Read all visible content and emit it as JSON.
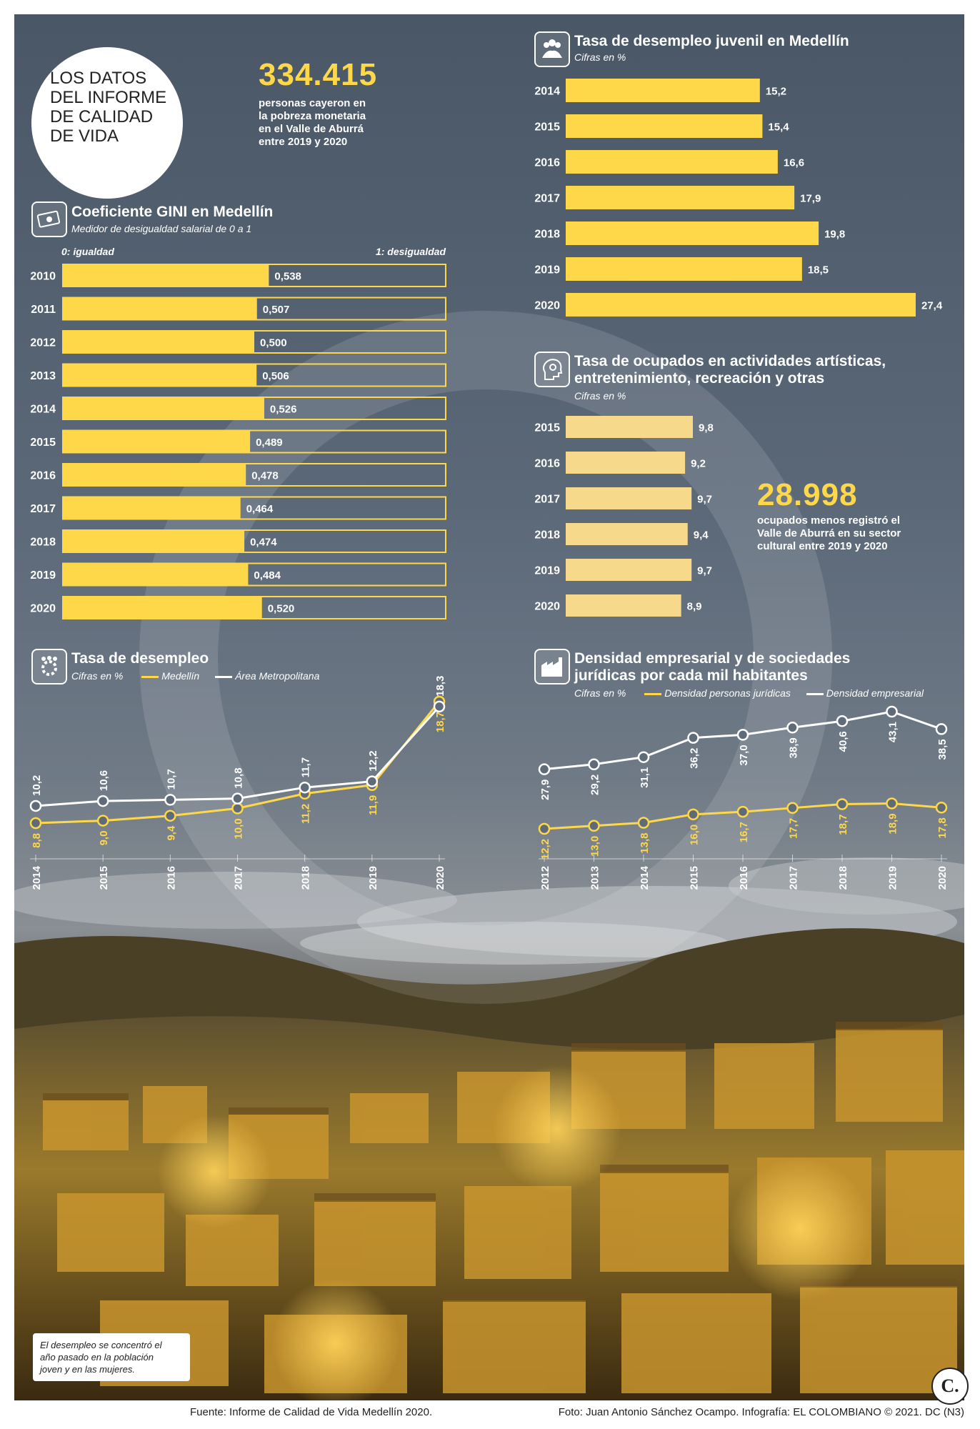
{
  "colors": {
    "yellow": "#ffd84a",
    "yellow_light": "#f6d98a",
    "white": "#ffffff",
    "dark": "#222222"
  },
  "header": {
    "circle_title": [
      "LOS DATOS",
      "DEL INFORME",
      "DE CALIDAD",
      "DE VIDA"
    ],
    "headline_number": "334.415",
    "headline_text": [
      "personas cayeron en",
      "la pobreza monetaria",
      "en el Valle de Aburrá",
      "entre 2019 y 2020"
    ]
  },
  "gini": {
    "title": "Coeficiente GINI en Medellín",
    "subtitle": "Medidor de desigualdad salarial de 0 a 1",
    "left_label": "0: igualdad",
    "right_label": "1: desigualdad",
    "icon": "money-icon"
  },
  "youth": {
    "title": "Tasa de desempleo juvenil en Medellín",
    "subtitle": "Cifras en %",
    "icon": "people-group-icon"
  },
  "arts": {
    "title_lines": [
      "Tasa de ocupados en actividades artísticas,",
      "entretenimiento, recreación y otras"
    ],
    "subtitle": "Cifras en %",
    "icon": "head-gear-icon",
    "callout_number": "28.998",
    "callout_text": [
      "ocupados menos registró el",
      "Valle de Aburrá en su sector",
      "cultural entre 2019 y 2020"
    ]
  },
  "unemployment": {
    "title": "Tasa de desempleo",
    "subtitle": "Cifras en %",
    "legend_a": "Medellín",
    "legend_b": "Área Metropolitana",
    "icon": "gear-people-icon"
  },
  "density": {
    "title_lines": [
      "Densidad empresarial y de sociedades",
      "jurídicas por cada mil habitantes"
    ],
    "subtitle": "Cifras en %",
    "legend_a": "Densidad personas jurídicas",
    "legend_b": "Densidad empresarial",
    "icon": "factory-icon"
  },
  "photo_note": [
    "El desempleo se concentró el",
    "año pasado en la población",
    "joven y en las mujeres."
  ],
  "footer": {
    "source": "Fuente: Informe de Calidad de Vida Medellín 2020.",
    "credits": "Foto: Juan Antonio Sánchez Ocampo. Infografía: EL COLOMBIANO © 2021. DC (N3)",
    "logo_letter": "C."
  },
  "chart_data": [
    {
      "id": "gini",
      "type": "bar",
      "orientation": "horizontal",
      "title": "Coeficiente GINI en Medellín",
      "categories": [
        "2010",
        "2011",
        "2012",
        "2013",
        "2014",
        "2015",
        "2016",
        "2017",
        "2018",
        "2019",
        "2020"
      ],
      "values": [
        0.538,
        0.507,
        0.5,
        0.506,
        0.526,
        0.489,
        0.478,
        0.464,
        0.474,
        0.484,
        0.52
      ],
      "labels": [
        "0,538",
        "0,507",
        "0,500",
        "0,506",
        "0,526",
        "0,489",
        "0,478",
        "0,464",
        "0,474",
        "0,484",
        "0,520"
      ],
      "xlim": [
        0,
        1
      ]
    },
    {
      "id": "youth",
      "type": "bar",
      "orientation": "horizontal",
      "title": "Tasa de desempleo juvenil en Medellín",
      "categories": [
        "2014",
        "2015",
        "2016",
        "2017",
        "2018",
        "2019",
        "2020"
      ],
      "values": [
        15.2,
        15.4,
        16.6,
        17.9,
        19.8,
        18.5,
        27.4
      ],
      "labels": [
        "15,2",
        "15,4",
        "16,6",
        "17,9",
        "19,8",
        "18,5",
        "27,4"
      ],
      "xlim": [
        0,
        27.4
      ]
    },
    {
      "id": "arts",
      "type": "bar",
      "orientation": "horizontal",
      "title": "Tasa de ocupados en actividades artísticas, entretenimiento, recreación y otras",
      "categories": [
        "2015",
        "2016",
        "2017",
        "2018",
        "2019",
        "2020"
      ],
      "values": [
        9.8,
        9.2,
        9.7,
        9.4,
        9.7,
        8.9
      ],
      "labels": [
        "9,8",
        "9,2",
        "9,7",
        "9,4",
        "9,7",
        "8,9"
      ],
      "xlim": [
        0,
        9.8
      ]
    },
    {
      "id": "unemployment",
      "type": "line",
      "title": "Tasa de desempleo",
      "x": [
        "2014",
        "2015",
        "2016",
        "2017",
        "2018",
        "2019",
        "2020"
      ],
      "series": [
        {
          "name": "Medellín",
          "values": [
            8.8,
            9.0,
            9.4,
            10.0,
            11.2,
            11.9,
            18.7
          ],
          "labels": [
            "8,8",
            "9,0",
            "9,4",
            "10,0",
            "11,2",
            "11,9",
            "18,7"
          ]
        },
        {
          "name": "Área Metropolitana",
          "values": [
            10.2,
            10.6,
            10.7,
            10.8,
            11.7,
            12.2,
            18.3
          ],
          "labels": [
            "10,2",
            "10,6",
            "10,7",
            "10,8",
            "11,7",
            "12,2",
            "18,3"
          ]
        }
      ],
      "ylim": [
        8,
        19
      ]
    },
    {
      "id": "density",
      "type": "line",
      "title": "Densidad empresarial y de sociedades jurídicas por cada mil habitantes",
      "x": [
        "2012",
        "2013",
        "2014",
        "2015",
        "2016",
        "2017",
        "2018",
        "2019",
        "2020"
      ],
      "series": [
        {
          "name": "Densidad personas jurídicas",
          "values": [
            12.2,
            13.0,
            13.8,
            16.0,
            16.7,
            17.7,
            18.7,
            18.9,
            17.8
          ],
          "labels": [
            "12,2",
            "13,0",
            "13,8",
            "16,0",
            "16,7",
            "17,7",
            "18,7",
            "18,9",
            "17,8"
          ]
        },
        {
          "name": "Densidad empresarial",
          "values": [
            27.9,
            29.2,
            31.1,
            36.2,
            37.0,
            38.9,
            40.6,
            43.1,
            38.5
          ],
          "labels": [
            "27,9",
            "29,2",
            "31,1",
            "36,2",
            "37,0",
            "38,9",
            "40,6",
            "43,1",
            "38,5"
          ]
        }
      ]
    }
  ]
}
